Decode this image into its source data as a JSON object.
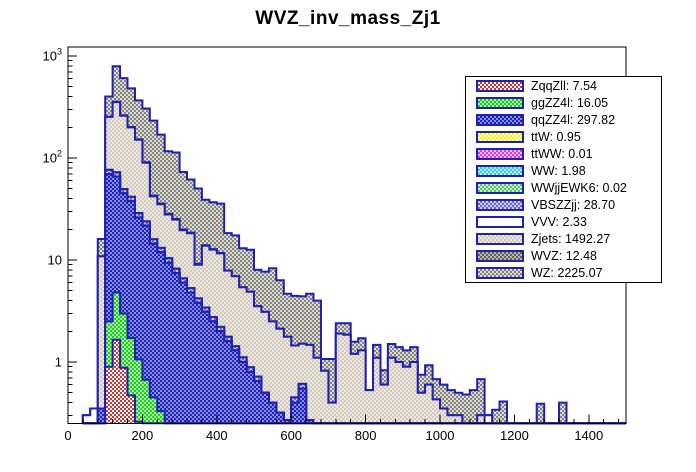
{
  "title": "WVZ_inv_mass_Zj1",
  "style": {
    "background": "#ffffff",
    "frame_color": "#000000",
    "hist_border_color": "#2121b0",
    "text_color": "#000000"
  },
  "axes": {
    "x_range": [
      0,
      1500
    ],
    "x_tick_step": 200,
    "x_minor_step": 40,
    "x_ticks": [
      0,
      200,
      400,
      600,
      800,
      1000,
      1200,
      1400
    ],
    "y_scale": "log",
    "y_range": [
      0.25,
      1220
    ],
    "y_ticks": [
      {
        "value": 1,
        "label": "1"
      },
      {
        "value": 10,
        "label": "10"
      },
      {
        "value": 100,
        "label": "10^2"
      },
      {
        "value": 1000,
        "label": "10^3"
      }
    ]
  },
  "legend": {
    "position": "top-right"
  },
  "chart_data": {
    "type": "stacked-step-histogram",
    "title": "WVZ_inv_mass_Zj1",
    "xlabel": "",
    "ylabel": "",
    "x_start": 40,
    "bin_width": 20,
    "n_bins": 73,
    "stack_order": "first series at bottom of stack, last (WZ) on top",
    "series": [
      {
        "name": "ZqqZll",
        "yield": "7.54",
        "label": "ZqqZll: 7.54",
        "fill_fg": "#d8322e",
        "fill_bg": "#ffffff",
        "bins": {
          "3": 0.9,
          "4": 1.65,
          "5": 0.88,
          "6": 0.47,
          "7": 0.26,
          "8": 0.12
        }
      },
      {
        "name": "ggZZ4l",
        "yield": "16.05",
        "label": "ggZZ4l: 16.05",
        "fill_fg": "#28c828",
        "fill_bg": "#a0f0a0",
        "bins": {
          "3": 1.6,
          "4": 3.15,
          "5": 2.1,
          "6": 1.25,
          "7": 0.8,
          "8": 0.55,
          "9": 0.45,
          "10": 0.33,
          "11": 0.2
        }
      },
      {
        "name": "qqZZ4l",
        "yield": "297.82",
        "label": "qqZZ4l: 297.82",
        "fill_fg": "#2020bb",
        "fill_bg": "#8890dd",
        "bins": {
          "2": 0.35,
          "3": 67,
          "4": 61,
          "5": 42,
          "6": 36,
          "7": 25,
          "8": 21,
          "9": 14,
          "10": 11.6,
          "11": 9.2,
          "12": 7.4,
          "13": 6,
          "14": 4.8,
          "15": 3.8,
          "16": 3.1,
          "17": 2.5,
          "18": 2,
          "19": 1.6,
          "20": 1.3,
          "21": 1,
          "22": 0.8,
          "23": 0.65,
          "24": 0.5,
          "25": 0.4,
          "26": 0.32,
          "27": 0.27,
          "28": 0.4,
          "29": 0.55,
          "30": 0.27
        }
      },
      {
        "name": "ttW",
        "yield": "0.95",
        "label": "ttW: 0.95",
        "fill_fg": "#f2ee3a",
        "fill_bg": "#fdfc9e",
        "bins": {}
      },
      {
        "name": "ttWW",
        "yield": "0.01",
        "label": "ttWW: 0.01",
        "fill_fg": "#d83cd8",
        "fill_bg": "#f2b6f2",
        "bins": {}
      },
      {
        "name": "WW",
        "yield": "1.98",
        "label": "WW: 1.98",
        "fill_fg": "#3cc8e6",
        "fill_bg": "#b4ecf8",
        "bins": {}
      },
      {
        "name": "WWjjEWK6",
        "yield": "0.02",
        "label": "WWjjEWK6: 0.02",
        "fill_fg": "#5cc86e",
        "fill_bg": "#c8ecc8",
        "bins": {}
      },
      {
        "name": "VBSZZjj",
        "yield": "28.70",
        "label": "VBSZZjj: 28.70",
        "fill_fg": "#6868cc",
        "fill_bg": "#ccccee",
        "bins": {
          "3": 7,
          "4": 6.5,
          "5": 4.5,
          "6": 3.8,
          "7": 2.7,
          "8": 2.2,
          "9": 1.5,
          "10": 1.2,
          "11": 1,
          "12": 0.8,
          "13": 0.6,
          "14": 0.5,
          "15": 0.4,
          "16": 0.32,
          "17": 0.26,
          "18": 0.21,
          "19": 0.17,
          "20": 0.13,
          "21": 0.11,
          "22": 0.09,
          "23": 0.07,
          "28": 0.05,
          "29": 0.06
        }
      },
      {
        "name": "VVV",
        "yield": "2.33",
        "label": "VVV: 2.33",
        "fill_fg": "#ffffff",
        "fill_bg": "#ffffff",
        "bins": {
          "0": 0.3,
          "1": 0.35,
          "3": 0.2,
          "4": 0.18,
          "5": 0.15,
          "6": 0.12,
          "7": 0.1,
          "8": 0.08,
          "9": 0.06,
          "54": 0.3
        }
      },
      {
        "name": "Zjets",
        "yield": "1492.27",
        "label": "Zjets: 1492.27",
        "fill_fg": "#d2cabc",
        "fill_bg": "#ece8e0",
        "bins": {
          "2": 10.5,
          "3": 176,
          "4": 281,
          "5": 210,
          "6": 158,
          "7": 122,
          "8": 66,
          "9": 26,
          "10": 22,
          "11": 17.5,
          "12": 16.7,
          "13": 13,
          "14": 13,
          "15": 4.8,
          "16": 10.4,
          "17": 9.9,
          "18": 9.4,
          "19": 6.1,
          "20": 5.5,
          "21": 4.3,
          "22": 4,
          "23": 2.8,
          "24": 2.6,
          "25": 2.1,
          "26": 1.8,
          "27": 1.5,
          "28": 1,
          "29": 0.9,
          "30": 1.2,
          "31": 1.1,
          "32": 0.82,
          "33": 0.4,
          "34": 1.9,
          "35": 1.85,
          "36": 1.2,
          "37": 1.3,
          "38": 0.53,
          "39": 1.1,
          "40": 0.6,
          "41": 1.1,
          "42": 1,
          "43": 0.9,
          "44": 1,
          "45": 0.5,
          "46": 0.6,
          "47": 0.43,
          "48": 0.35,
          "49": 0.3,
          "50": 0.3,
          "51": 0.2,
          "52": 0.15,
          "53": 0.3,
          "55": 0.15,
          "56": 0.2,
          "61": 0.2,
          "64": 0.2
        }
      },
      {
        "name": "WVZ",
        "yield": "12.48",
        "label": "WVZ: 12.48",
        "fill_fg": "#62625c",
        "fill_bg": "#b4b4ac",
        "bins": {
          "3": 1.5,
          "4": 2.5,
          "5": 2,
          "6": 1.5,
          "7": 1.2,
          "8": 1,
          "9": 0.8,
          "10": 0.6,
          "11": 0.5,
          "12": 0.4,
          "13": 0.3,
          "14": 0.25,
          "15": 0.2,
          "16": 0.15,
          "17": 0.12,
          "18": 0.1
        }
      },
      {
        "name": "WZ",
        "yield": "2225.07",
        "label": "WZ: 2225.07",
        "fill_fg": "#84847c",
        "fill_bg": "#dcdcd4",
        "bins": {
          "2": 5.2,
          "3": 147,
          "4": 436,
          "5": 345,
          "6": 280,
          "7": 215,
          "8": 215,
          "9": 190,
          "10": 134,
          "11": 88,
          "12": 88,
          "13": 53,
          "14": 43,
          "15": 41,
          "16": 25,
          "17": 24,
          "18": 24,
          "19": 10.5,
          "20": 10.5,
          "21": 7.6,
          "22": 7.7,
          "23": 4.5,
          "24": 4.6,
          "25": 5.8,
          "26": 4.2,
          "27": 2.9,
          "28": 3,
          "29": 2.9,
          "30": 3.2,
          "31": 2.9,
          "32": 0.25,
          "33": 0.67,
          "34": 0.5,
          "35": 0.55,
          "36": 0.38,
          "37": 0.41,
          "39": 0.37,
          "40": 0.23,
          "41": 0.4,
          "42": 0.4,
          "43": 0.4,
          "44": 0.4,
          "45": 0.25,
          "46": 0.33,
          "47": 0.25,
          "48": 0.25,
          "49": 0.23,
          "50": 0.2,
          "51": 0.28,
          "52": 0.38,
          "53": 0.38,
          "55": 0.19,
          "56": 0.21,
          "61": 0.19,
          "64": 0.2
        }
      }
    ]
  }
}
